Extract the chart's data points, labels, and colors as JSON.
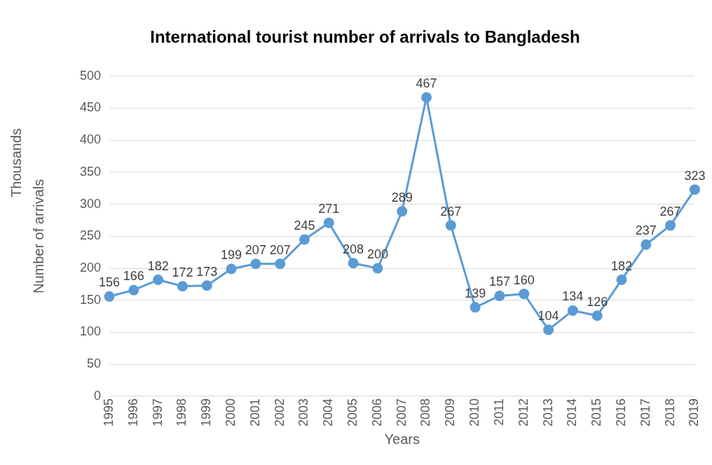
{
  "chart_data": {
    "type": "line",
    "title": "International tourist number of arrivals to Bangladesh",
    "xlabel": "Years",
    "ylabel": "Number of arrivals",
    "annotations": [
      "Thousands"
    ],
    "categories": [
      "1995",
      "1996",
      "1997",
      "1998",
      "1999",
      "2000",
      "2001",
      "2002",
      "2003",
      "2004",
      "2005",
      "2006",
      "2007",
      "2008",
      "2009",
      "2010",
      "2011",
      "2012",
      "2013",
      "2014",
      "2015",
      "2016",
      "2017",
      "2018",
      "2019"
    ],
    "series": [
      {
        "color": "#5b9bd5",
        "values": [
          156,
          166,
          182,
          172,
          173,
          199,
          207,
          207,
          245,
          271,
          208,
          200,
          289,
          467,
          267,
          139,
          157,
          160,
          104,
          134,
          126,
          182,
          237,
          267,
          323
        ]
      }
    ],
    "ylim": [
      0,
      500
    ],
    "yticks": [
      0,
      50,
      100,
      150,
      200,
      250,
      300,
      350,
      400,
      450,
      500
    ],
    "grid": "y",
    "legend": false,
    "marker": "circle",
    "line_style": "solid",
    "data_labels": true
  }
}
